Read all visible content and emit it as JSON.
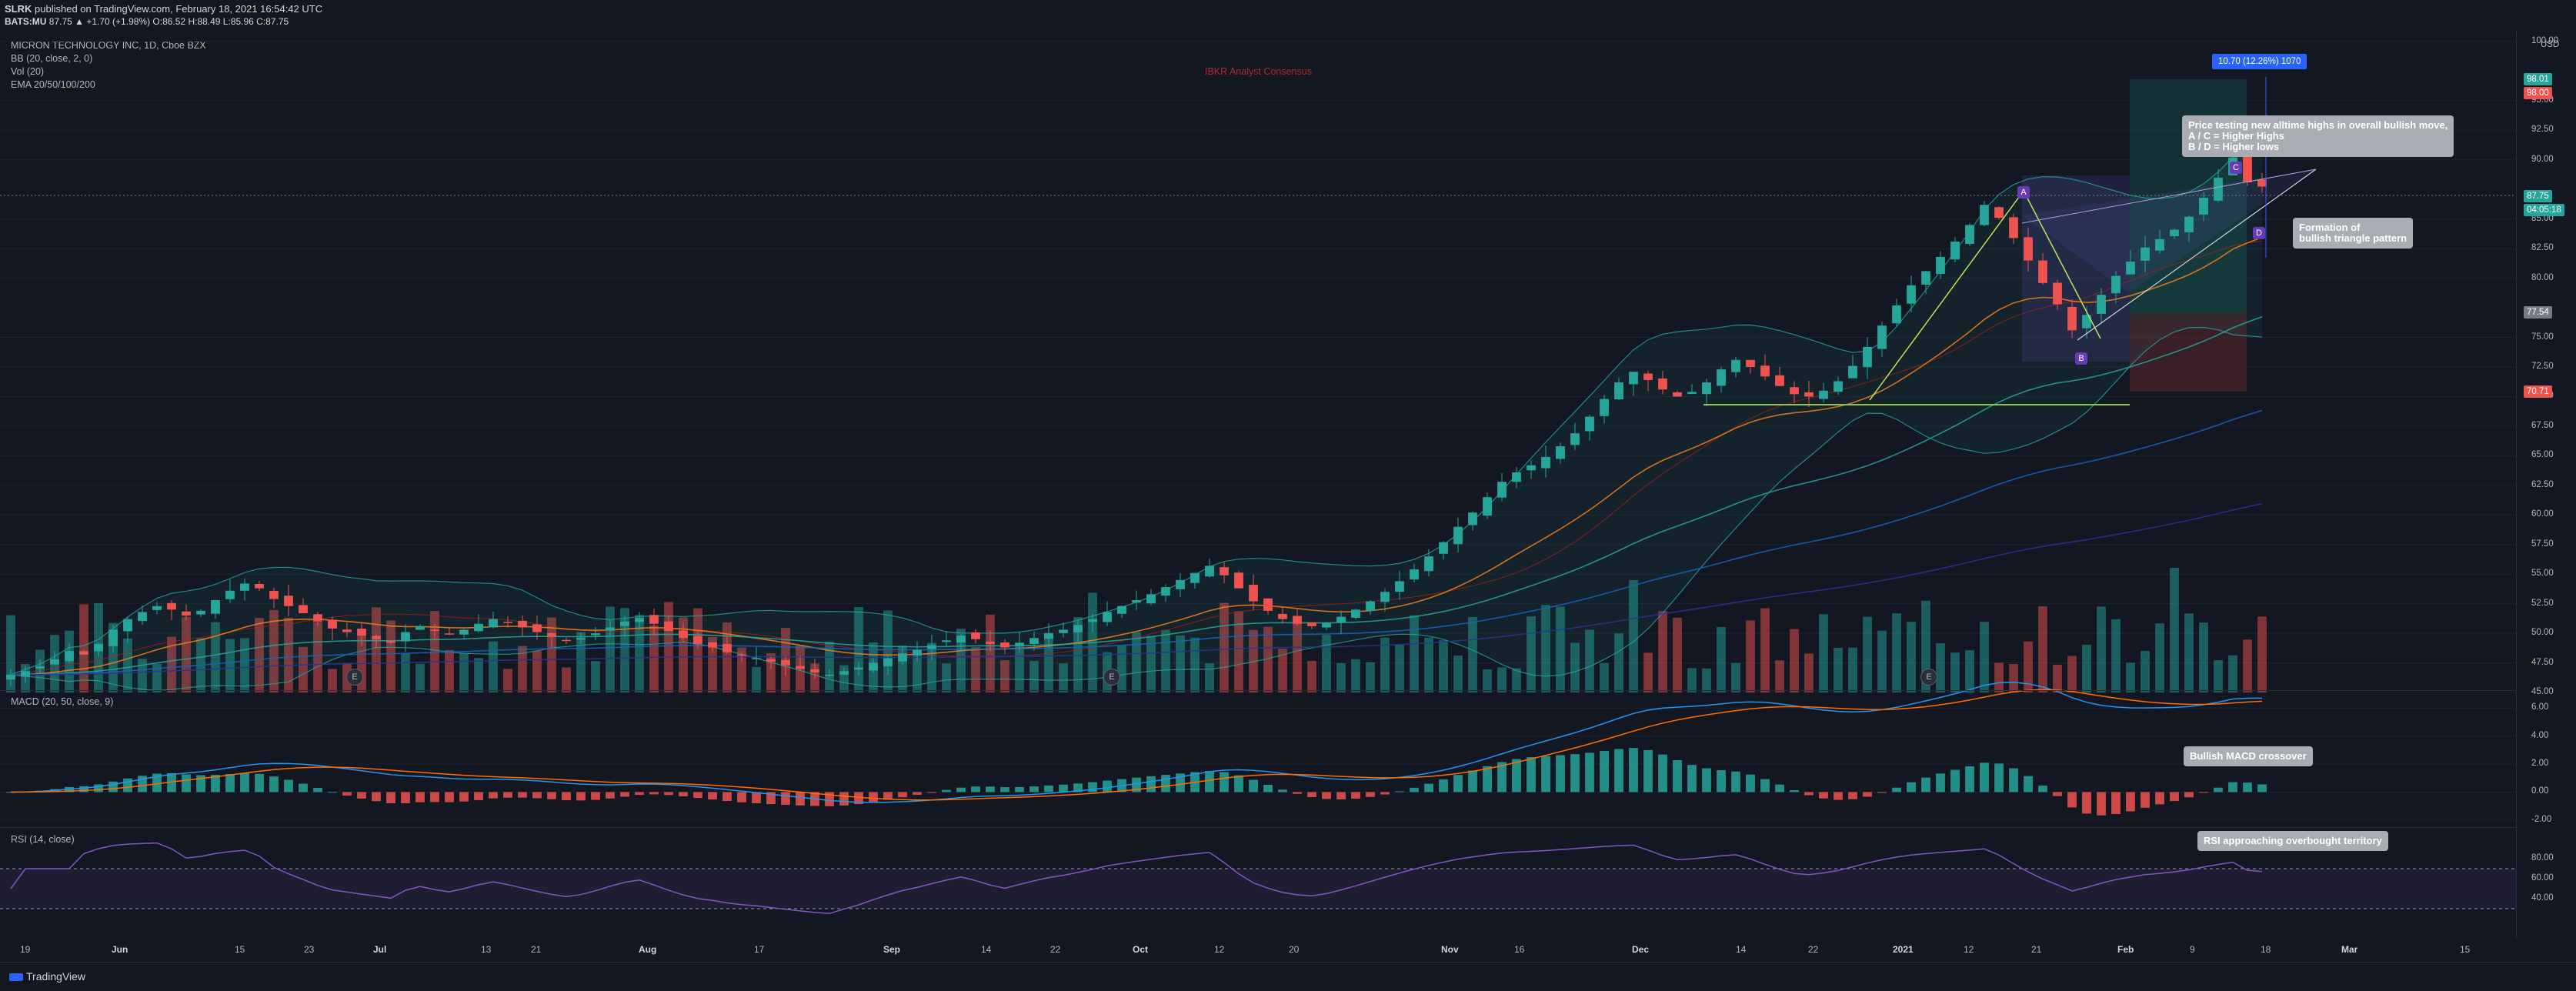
{
  "header": {
    "publisher_line": "published on TradingView.com, February 18, 2021 16:54:42 UTC",
    "author": "SLRK",
    "symbol_line": "BATS:MU",
    "ohlc": "87.75  ▲ +1.70 (+1.98%)  O:86.52  H:88.49  L:85.96  C:87.75"
  },
  "legend": {
    "instrument": "MICRON TECHNOLOGY INC, 1D, Cboe BZX",
    "bb": "BB (20, close, 2, 0)",
    "vol": "Vol (20)",
    "ema": "EMA 20/50/100/200",
    "consensus": "IBKR Analyst Consensus"
  },
  "price_axis": {
    "currency": "USD",
    "ticks": [
      "100.00",
      "95.00",
      "92.50",
      "90.00",
      "85.00",
      "82.50",
      "80.00",
      "75.00",
      "72.50",
      "70.00",
      "67.50",
      "65.00",
      "62.50",
      "60.00",
      "57.50",
      "55.00",
      "52.50",
      "50.00",
      "47.50",
      "45.00"
    ]
  },
  "price_labels": {
    "target": "98.01",
    "stop": "98.00",
    "last": "87.75",
    "countdown": "04:05:18",
    "entry": "77.54",
    "loss": "70.71",
    "range_box": "10.70 (12.26%) 1070"
  },
  "annotations": {
    "callout_top": [
      "Price testing new alltime highs in overall bullish move,",
      "A / C = Higher Highs",
      "B / D = Higher lows"
    ],
    "callout_triangle": [
      "Formation of",
      "bullish triangle pattern"
    ],
    "callout_macd": "Bullish MACD crossover",
    "callout_rsi": "RSI approaching overbought territory",
    "points": [
      "A",
      "B",
      "C",
      "D"
    ],
    "earnings": "E"
  },
  "macd": {
    "title": "MACD (20, 50, close, 9)",
    "ticks": [
      "6.00",
      "4.00",
      "2.00",
      "0.00",
      "-2.00"
    ]
  },
  "rsi": {
    "title": "RSI (14, close)",
    "ticks": [
      "80.00",
      "60.00",
      "40.00"
    ]
  },
  "time_axis": {
    "ticks": [
      "19",
      "Jun",
      "15",
      "23",
      "Jul",
      "13",
      "21",
      "Aug",
      "17",
      "Sep",
      "14",
      "22",
      "Oct",
      "12",
      "20",
      "Nov",
      "16",
      "Dec",
      "14",
      "22",
      "2021",
      "12",
      "21",
      "Feb",
      "9",
      "18",
      "Mar",
      "15"
    ]
  },
  "footer": {
    "brand": "TradingView"
  },
  "colors": {
    "background": "#131722",
    "bull": "#26a69a",
    "bear": "#ef5350",
    "accent_blue": "#2962ff",
    "rsi": "#7e57c2"
  },
  "chart_data": {
    "type": "candlestick",
    "title": "MICRON TECHNOLOGY INC, 1D, Cboe BZX",
    "ylabel": "USD",
    "ylim": [
      45,
      100
    ],
    "closes": [
      46.5,
      46.8,
      47.2,
      47.8,
      48.5,
      48.2,
      49.1,
      50.3,
      51.2,
      51.8,
      52.3,
      52.0,
      51.5,
      51.9,
      52.8,
      53.6,
      54.2,
      53.8,
      52.9,
      52.3,
      51.7,
      51.0,
      50.4,
      50.1,
      49.8,
      49.5,
      49.2,
      50.1,
      50.6,
      50.2,
      49.9,
      50.3,
      50.8,
      51.2,
      50.9,
      50.5,
      50.1,
      49.7,
      49.4,
      49.6,
      50.0,
      50.5,
      51.0,
      51.3,
      50.8,
      50.2,
      49.6,
      49.1,
      48.8,
      48.4,
      48.1,
      47.9,
      47.6,
      47.3,
      47.0,
      46.7,
      46.5,
      46.8,
      47.1,
      47.5,
      47.9,
      48.3,
      48.6,
      49.0,
      49.4,
      49.8,
      49.5,
      49.1,
      48.8,
      49.2,
      49.6,
      50.0,
      50.3,
      50.7,
      51.2,
      51.8,
      52.3,
      52.8,
      53.3,
      53.9,
      54.5,
      55.1,
      55.7,
      54.9,
      53.8,
      52.7,
      51.9,
      51.2,
      50.8,
      50.6,
      50.9,
      51.4,
      52.0,
      52.7,
      53.5,
      54.4,
      55.4,
      56.5,
      57.7,
      59.0,
      60.2,
      61.5,
      62.8,
      63.6,
      64.2,
      64.9,
      65.8,
      66.9,
      68.3,
      69.8,
      71.2,
      72.1,
      71.4,
      70.6,
      70.0,
      70.4,
      71.2,
      72.3,
      73.1,
      72.5,
      71.7,
      70.9,
      70.2,
      70.0,
      70.5,
      71.3,
      72.6,
      74.2,
      76.0,
      77.7,
      79.4,
      80.6,
      81.8,
      83.1,
      84.5,
      86.2,
      85.1,
      83.4,
      81.5,
      79.6,
      77.8,
      75.6,
      76.9,
      78.6,
      80.2,
      81.4,
      82.6,
      83.3,
      84.1,
      85.2,
      86.8,
      88.5,
      90.2,
      88.1,
      87.75
    ]
  }
}
